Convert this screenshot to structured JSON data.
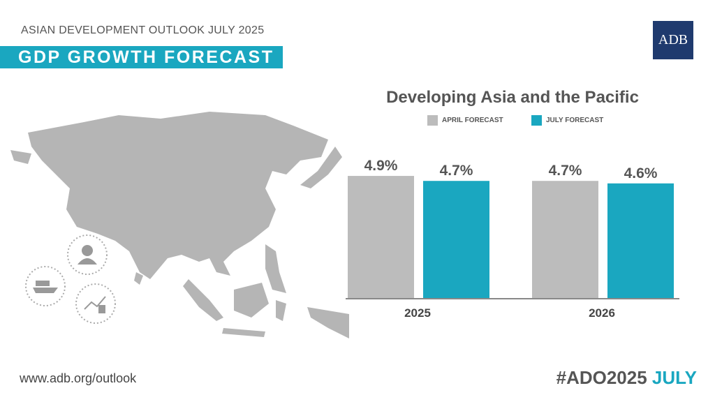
{
  "header": {
    "supertitle": "ASIAN DEVELOPMENT OUTLOOK JULY 2025",
    "title": "GDP GROWTH FORECAST",
    "logo": "ADB"
  },
  "footer": {
    "url": "www.adb.org/outlook",
    "hashtag": "#ADO2025",
    "hashtag_accent": "JULY"
  },
  "colors": {
    "accent": "#1aa7c0",
    "april": "#bcbcbc",
    "navy": "#1f3a6e",
    "map": "#b5b5b5"
  },
  "icons": [
    "person-icon",
    "cargo-ship-icon",
    "growth-coins-icon"
  ],
  "chart_data": {
    "type": "bar",
    "title": "Developing Asia and the Pacific",
    "categories": [
      "2025",
      "2026"
    ],
    "series": [
      {
        "name": "APRIL FORECAST",
        "values": [
          4.9,
          4.7
        ],
        "labels": [
          "4.9%",
          "4.7%"
        ]
      },
      {
        "name": "JULY FORECAST",
        "values": [
          4.7,
          4.6
        ],
        "labels": [
          "4.7%",
          "4.6%"
        ]
      }
    ],
    "ylim": [
      0,
      5
    ],
    "unit": "%",
    "grid": false,
    "legend": "top"
  }
}
